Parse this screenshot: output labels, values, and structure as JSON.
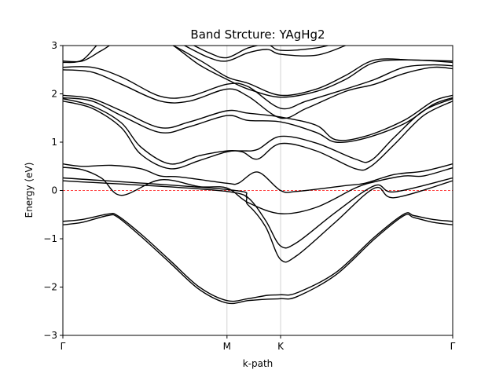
{
  "chart_data": {
    "type": "line",
    "title": "Band Strcture: YAgHg2",
    "xlabel": "k-path",
    "ylabel": "Energy (eV)",
    "ylim": [
      -3,
      3
    ],
    "xlim": [
      0,
      2.0
    ],
    "yticks": [
      {
        "value": -3,
        "label": "−3"
      },
      {
        "value": -2,
        "label": "−2"
      },
      {
        "value": -1,
        "label": "−1"
      },
      {
        "value": 0,
        "label": "0"
      },
      {
        "value": 1,
        "label": "1"
      },
      {
        "value": 2,
        "label": "2"
      },
      {
        "value": 3,
        "label": "3"
      }
    ],
    "xticks": [
      {
        "value": 0,
        "label": "Γ"
      },
      {
        "value": 0.842,
        "label": "M"
      },
      {
        "value": 1.117,
        "label": "K"
      },
      {
        "value": 2.0,
        "label": "Γ"
      }
    ],
    "fermi_level": 0,
    "colors": {
      "bands": "#000000",
      "fermi": "#ff0000",
      "vlines": "#c8c8c8"
    },
    "grid": false,
    "series": [
      {
        "x": [
          0,
          0.1,
          0.23,
          0.28,
          0.4,
          0.55,
          0.7,
          0.842,
          0.95,
          1.05,
          1.117,
          1.2,
          1.4,
          1.6,
          1.75,
          1.8,
          1.9,
          2.0
        ],
        "values": [
          -0.71,
          -0.66,
          -0.52,
          -0.55,
          -0.95,
          -1.5,
          -2.05,
          -2.33,
          -2.28,
          -2.25,
          -2.24,
          -2.2,
          -1.75,
          -1.0,
          -0.52,
          -0.56,
          -0.66,
          -0.71
        ]
      },
      {
        "x": [
          0,
          0.1,
          0.23,
          0.28,
          0.4,
          0.55,
          0.7,
          0.842,
          0.95,
          1.05,
          1.117,
          1.2,
          1.4,
          1.6,
          1.75,
          1.8,
          1.9,
          2.0
        ],
        "values": [
          -0.64,
          -0.6,
          -0.49,
          -0.52,
          -0.9,
          -1.45,
          -2.0,
          -2.28,
          -2.24,
          -2.17,
          -2.16,
          -2.12,
          -1.7,
          -0.96,
          -0.49,
          -0.52,
          -0.6,
          -0.64
        ]
      },
      {
        "x": [
          0,
          0.842,
          0.95,
          1.04,
          1.117,
          1.2,
          1.4,
          1.6,
          1.7,
          2.0
        ],
        "values": [
          0.2,
          -0.02,
          -0.3,
          -0.75,
          -1.43,
          -1.35,
          -0.65,
          0.05,
          -0.15,
          0.2
        ]
      },
      {
        "x": [
          0,
          0.842,
          0.95,
          1.04,
          1.117,
          1.2,
          1.4,
          1.6,
          1.7,
          2.0
        ],
        "values": [
          0.26,
          0.02,
          -0.15,
          -0.62,
          -1.15,
          -1.08,
          -0.45,
          0.1,
          -0.03,
          0.26
        ]
      },
      {
        "x": [
          0,
          0.1,
          0.2,
          0.3,
          0.5,
          0.7,
          0.842,
          0.95,
          1.117,
          1.3,
          1.5,
          1.6,
          1.75,
          1.85,
          2.0
        ],
        "values": [
          0.48,
          0.43,
          0.25,
          -0.1,
          0.22,
          0.08,
          0.05,
          -0.25,
          -0.48,
          -0.35,
          0.05,
          0.18,
          0.3,
          0.3,
          0.47
        ]
      },
      {
        "x": [
          0,
          0.1,
          0.25,
          0.4,
          0.5,
          0.6,
          0.842,
          0.9,
          1.0,
          1.117,
          1.2,
          1.45,
          1.55,
          1.7,
          1.85,
          2.0
        ],
        "values": [
          0.55,
          0.5,
          0.52,
          0.45,
          0.3,
          0.28,
          0.15,
          0.15,
          0.38,
          0.0,
          -0.02,
          0.1,
          0.15,
          0.33,
          0.4,
          0.55
        ]
      },
      {
        "x": [
          0,
          0.15,
          0.3,
          0.4,
          0.55,
          0.7,
          0.842,
          0.92,
          1.0,
          1.117,
          1.3,
          1.5,
          1.58,
          1.7,
          1.85,
          2.0
        ],
        "values": [
          1.85,
          1.7,
          1.3,
          0.75,
          0.45,
          0.62,
          0.8,
          0.8,
          0.65,
          0.97,
          0.82,
          0.45,
          0.5,
          0.95,
          1.55,
          1.85
        ]
      },
      {
        "x": [
          0,
          0.15,
          0.3,
          0.4,
          0.55,
          0.7,
          0.842,
          0.92,
          1.0,
          1.117,
          1.3,
          1.5,
          1.58,
          1.7,
          1.85,
          2.0
        ],
        "values": [
          1.9,
          1.75,
          1.4,
          0.9,
          0.55,
          0.72,
          0.82,
          0.82,
          0.85,
          1.12,
          0.98,
          0.65,
          0.62,
          1.1,
          1.65,
          1.9
        ]
      },
      {
        "x": [
          0,
          0.15,
          0.3,
          0.5,
          0.65,
          0.842,
          0.95,
          1.117,
          1.3,
          1.4,
          1.55,
          1.75,
          1.9,
          2.0
        ],
        "values": [
          1.92,
          1.85,
          1.55,
          1.2,
          1.32,
          1.55,
          1.45,
          1.42,
          1.2,
          1.0,
          1.08,
          1.38,
          1.78,
          1.92
        ]
      },
      {
        "x": [
          0,
          0.15,
          0.3,
          0.5,
          0.65,
          0.842,
          0.95,
          1.117,
          1.3,
          1.4,
          1.55,
          1.75,
          1.9,
          2.0
        ],
        "values": [
          1.97,
          1.9,
          1.65,
          1.3,
          1.42,
          1.65,
          1.6,
          1.52,
          1.35,
          1.05,
          1.12,
          1.45,
          1.85,
          1.97
        ]
      },
      {
        "x": [
          0,
          0.15,
          0.3,
          0.5,
          0.65,
          0.842,
          0.95,
          1.117,
          1.25,
          1.45,
          1.6,
          1.75,
          1.9,
          2.0
        ],
        "values": [
          2.5,
          2.45,
          2.2,
          1.85,
          1.85,
          2.1,
          1.95,
          1.5,
          1.7,
          2.05,
          2.2,
          2.42,
          2.55,
          2.52
        ]
      },
      {
        "x": [
          0,
          0.15,
          0.3,
          0.5,
          0.65,
          0.842,
          0.95,
          1.117,
          1.25,
          1.45,
          1.6,
          1.75,
          1.9,
          2.0
        ],
        "values": [
          2.55,
          2.55,
          2.35,
          1.95,
          1.95,
          2.2,
          2.15,
          1.7,
          1.85,
          2.1,
          2.3,
          2.55,
          2.6,
          2.58
        ]
      },
      {
        "x": [
          0,
          0.1,
          0.2,
          0.3,
          0.5,
          0.7,
          0.842,
          0.95,
          1.117,
          1.3,
          1.45,
          1.6,
          1.8,
          2.0
        ],
        "values": [
          2.65,
          2.7,
          3.1,
          3.2,
          3.15,
          2.6,
          2.3,
          2.1,
          1.93,
          2.05,
          2.3,
          2.65,
          2.7,
          2.65
        ]
      },
      {
        "x": [
          0,
          0.1,
          0.2,
          0.3,
          0.5,
          0.7,
          0.842,
          0.95,
          1.117,
          1.3,
          1.45,
          1.6,
          1.8,
          2.0
        ],
        "values": [
          2.68,
          2.68,
          2.9,
          3.1,
          3.1,
          2.7,
          2.35,
          2.22,
          1.97,
          2.1,
          2.38,
          2.7,
          2.7,
          2.68
        ]
      },
      {
        "x": [
          0.6,
          0.75,
          0.842,
          0.95,
          1.05,
          1.117,
          1.3,
          1.45
        ],
        "values": [
          3.05,
          2.75,
          2.68,
          2.85,
          2.92,
          2.82,
          2.8,
          3.0
        ]
      },
      {
        "x": [
          0.6,
          0.75,
          0.842,
          0.95,
          1.05,
          1.117,
          1.3,
          1.45
        ],
        "values": [
          3.15,
          2.85,
          2.75,
          2.95,
          3.02,
          2.9,
          2.95,
          3.1
        ]
      }
    ]
  }
}
